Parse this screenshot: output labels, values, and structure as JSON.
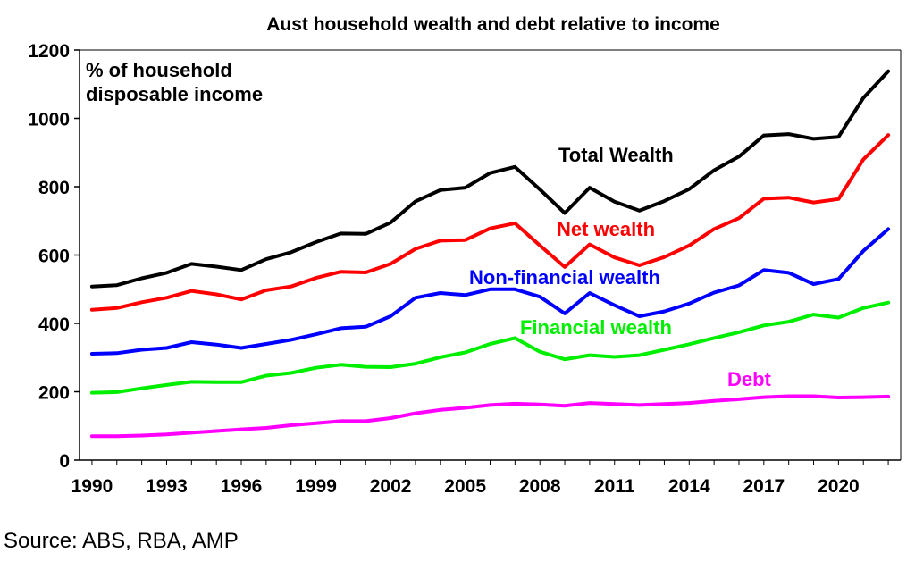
{
  "chart_data": {
    "type": "line",
    "title": "Aust household wealth and debt relative to income",
    "note_lines": [
      "% of household",
      "disposable income"
    ],
    "x": [
      1990,
      1991,
      1992,
      1993,
      1994,
      1995,
      1996,
      1997,
      1998,
      1999,
      2000,
      2001,
      2002,
      2003,
      2004,
      2005,
      2006,
      2007,
      2008,
      2009,
      2010,
      2011,
      2012,
      2013,
      2014,
      2015,
      2016,
      2017,
      2018,
      2019,
      2020,
      2021,
      2022
    ],
    "x_ticks": [
      "1990",
      "1993",
      "1996",
      "1999",
      "2002",
      "2005",
      "2008",
      "2011",
      "2014",
      "2017",
      "2020"
    ],
    "y_ticks": [
      "0",
      "200",
      "400",
      "600",
      "800",
      "1000",
      "1200"
    ],
    "ylim": [
      0,
      1200
    ],
    "xlim": [
      1989.5,
      2022.5
    ],
    "grid": false,
    "legend": "none",
    "series": [
      {
        "name": "Total Wealth",
        "color": "#000000",
        "values": [
          508,
          512,
          532,
          548,
          574,
          566,
          556,
          588,
          608,
          638,
          663,
          662,
          695,
          757,
          790,
          797,
          840,
          858,
          792,
          723,
          797,
          756,
          730,
          758,
          793,
          848,
          888,
          950,
          954,
          940,
          946,
          1060,
          1138
        ]
      },
      {
        "name": "Net wealth",
        "color": "#ff0000",
        "values": [
          440,
          445,
          462,
          475,
          495,
          485,
          470,
          497,
          508,
          533,
          551,
          549,
          574,
          618,
          642,
          644,
          678,
          693,
          628,
          565,
          631,
          593,
          570,
          594,
          628,
          676,
          708,
          765,
          768,
          754,
          764,
          880,
          951
        ]
      },
      {
        "name": "Non-financial wealth",
        "color": "#0000ff",
        "values": [
          311,
          313,
          323,
          328,
          345,
          338,
          328,
          340,
          352,
          368,
          386,
          390,
          421,
          475,
          489,
          483,
          500,
          500,
          478,
          429,
          489,
          453,
          421,
          435,
          458,
          490,
          511,
          556,
          548,
          515,
          530,
          612,
          676
        ]
      },
      {
        "name": "Financial wealth",
        "color": "#00ee00",
        "values": [
          197,
          199,
          210,
          220,
          229,
          228,
          228,
          247,
          255,
          270,
          279,
          273,
          272,
          282,
          301,
          315,
          340,
          357,
          317,
          295,
          307,
          302,
          307,
          323,
          339,
          357,
          374,
          394,
          405,
          426,
          417,
          445,
          461
        ]
      },
      {
        "name": "Debt",
        "color": "#ff00ff",
        "values": [
          70,
          70,
          72,
          75,
          80,
          85,
          90,
          94,
          102,
          108,
          114,
          114,
          123,
          137,
          147,
          153,
          161,
          165,
          163,
          159,
          167,
          164,
          161,
          164,
          167,
          173,
          178,
          184,
          187,
          187,
          183,
          184,
          186
        ]
      }
    ]
  },
  "footer": {
    "source": "Source: ABS, RBA, AMP"
  }
}
